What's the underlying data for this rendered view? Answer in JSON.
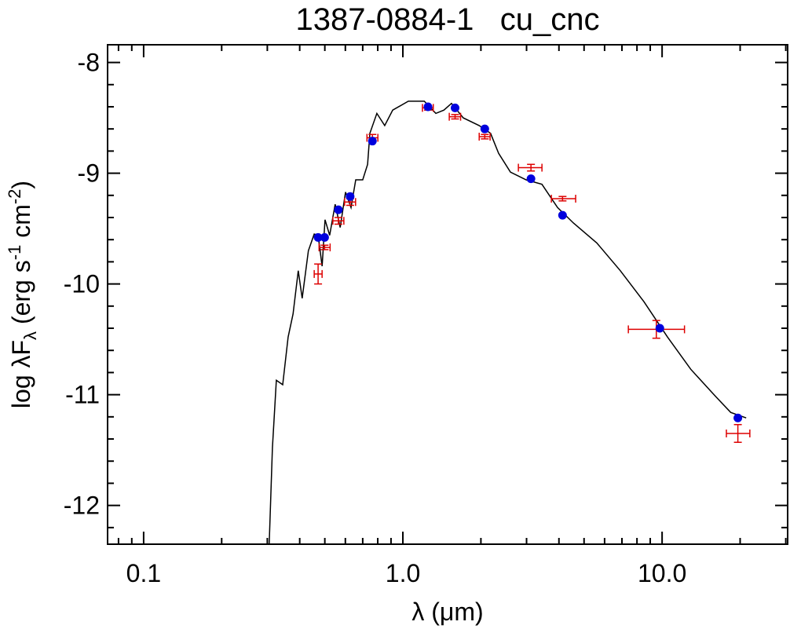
{
  "chart_data": {
    "type": "sed",
    "title": "1387-0884-1   cu_cnc",
    "xlabel": "λ (μm)",
    "ylabel": [
      "log λF",
      "λ",
      " (erg s",
      "-1",
      " cm",
      "-2",
      ")"
    ],
    "ylabel_styles": [
      "normal",
      "sub",
      "normal",
      "sup",
      "normal",
      "sup",
      "normal"
    ],
    "xscale": "log",
    "xlim": [
      0.0726,
      30.5
    ],
    "ylim": [
      -12.35,
      -7.84
    ],
    "xticks": [
      0.1,
      {
        "value": 1,
        "label": "1.0"
      },
      {
        "value": 10,
        "label": "10.0"
      }
    ],
    "xminorticks": [
      0.08,
      0.09,
      0.2,
      0.3,
      0.4,
      0.5,
      0.6,
      0.7,
      0.8,
      0.9,
      2,
      3,
      4,
      5,
      6,
      7,
      8,
      9,
      20,
      30
    ],
    "yticks": [
      -8,
      -9,
      -10,
      -11,
      -12
    ],
    "yminorticks": [
      -8.2,
      -8.4,
      -8.6,
      -8.8,
      -9.2,
      -9.4,
      -9.6,
      -9.8,
      -10.2,
      -10.4,
      -10.6,
      -10.8,
      -11.2,
      -11.4,
      -11.6,
      -11.8,
      -12.2
    ],
    "model": {
      "color": "#000000",
      "x": [
        0.305,
        0.314,
        0.325,
        0.344,
        0.361,
        0.377,
        0.395,
        0.409,
        0.432,
        0.455,
        0.471,
        0.488,
        0.501,
        0.522,
        0.548,
        0.573,
        0.601,
        0.631,
        0.658,
        0.7,
        0.731,
        0.746,
        0.794,
        0.851,
        0.914,
        1.05,
        1.21,
        1.34,
        1.44,
        1.54,
        1.71,
        1.97,
        2.18,
        2.34,
        2.6,
        2.99,
        3.44,
        3.95,
        4.55,
        5.6,
        6.9,
        8.51,
        10.5,
        12.9,
        16.0,
        18.4,
        21.1
      ],
      "values": [
        -12.35,
        -11.48,
        -10.87,
        -10.91,
        -10.48,
        -10.27,
        -9.88,
        -10.13,
        -9.7,
        -9.55,
        -9.56,
        -9.84,
        -9.42,
        -9.56,
        -9.28,
        -9.49,
        -9.17,
        -9.31,
        -9.06,
        -9.06,
        -8.92,
        -8.64,
        -8.46,
        -8.57,
        -8.43,
        -8.35,
        -8.35,
        -8.46,
        -8.43,
        -8.37,
        -8.5,
        -8.57,
        -8.64,
        -8.82,
        -8.99,
        -9.06,
        -9.1,
        -9.31,
        -9.45,
        -9.63,
        -9.88,
        -10.16,
        -10.48,
        -10.77,
        -11.01,
        -11.16,
        -11.21
      ]
    },
    "model_points": {
      "color": "#0000dd",
      "x": [
        0.471,
        0.499,
        0.564,
        0.626,
        0.763,
        1.25,
        1.59,
        2.07,
        3.12,
        4.13,
        9.8,
        19.6
      ],
      "values": [
        -9.58,
        -9.58,
        -9.33,
        -9.21,
        -8.71,
        -8.4,
        -8.41,
        -8.6,
        -9.05,
        -9.38,
        -10.4,
        -11.21
      ]
    },
    "observed": {
      "color": "#dd0000",
      "x": [
        0.471,
        0.499,
        0.564,
        0.626,
        0.763,
        1.25,
        1.59,
        2.07,
        3.12,
        4.13,
        9.5,
        19.6
      ],
      "xlow": [
        0.455,
        0.475,
        0.537,
        0.596,
        0.727,
        1.19,
        1.51,
        1.97,
        2.79,
        3.74,
        7.41,
        17.7
      ],
      "xhigh": [
        0.488,
        0.524,
        0.592,
        0.657,
        0.801,
        1.31,
        1.67,
        2.17,
        3.44,
        4.64,
        12.2,
        21.8
      ],
      "values": [
        -9.91,
        -9.67,
        -9.43,
        -9.26,
        -8.68,
        -8.41,
        -8.49,
        -8.67,
        -8.95,
        -9.23,
        -10.41,
        -11.35
      ],
      "yerr": [
        0.09,
        0.02,
        0.03,
        0.03,
        0.03,
        0.02,
        0.02,
        0.02,
        0.03,
        0.02,
        0.08,
        0.08
      ]
    }
  }
}
